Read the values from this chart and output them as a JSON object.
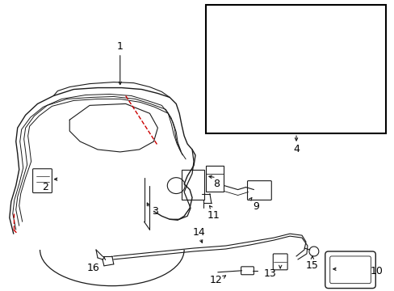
{
  "bg_color": "#ffffff",
  "line_color": "#1a1a1a",
  "red_color": "#cc0000",
  "box_color": "#000000",
  "figsize": [
    4.89,
    3.6
  ],
  "dpi": 100,
  "label_fs": 9
}
